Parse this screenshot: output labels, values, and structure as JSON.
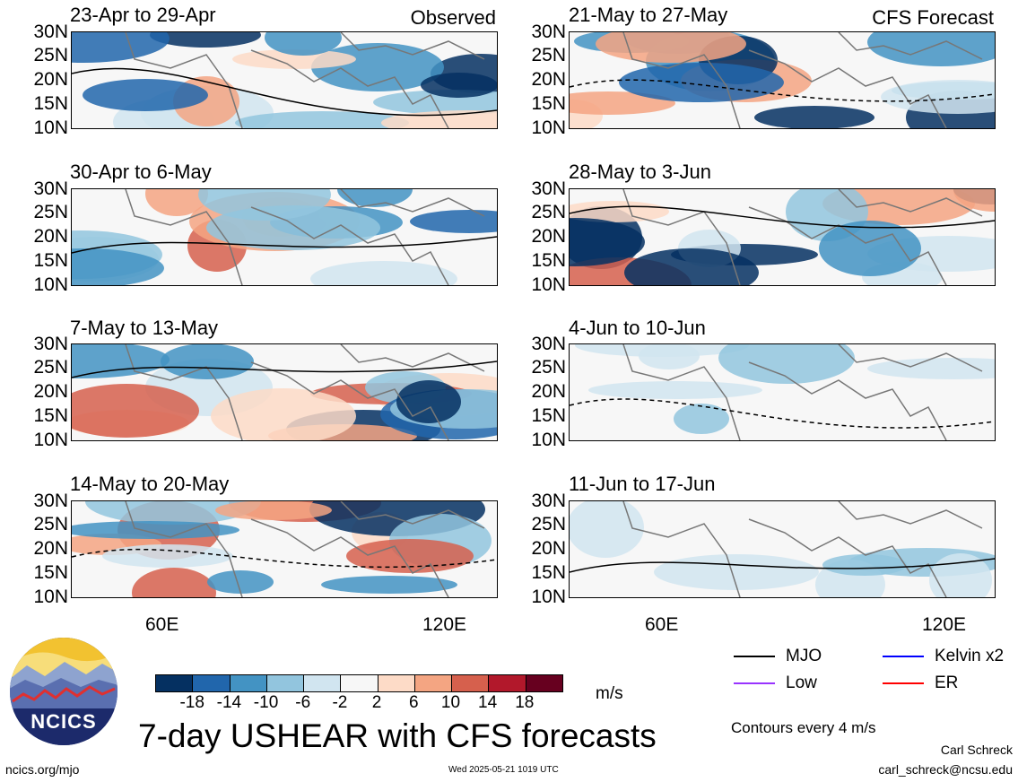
{
  "panels_left": [
    {
      "title": "23-Apr to 29-Apr",
      "tag": "Observed"
    },
    {
      "title": "30-Apr to 6-May",
      "tag": ""
    },
    {
      "title": "7-May to 13-May",
      "tag": ""
    },
    {
      "title": "14-May to 20-May",
      "tag": ""
    }
  ],
  "panels_right": [
    {
      "title": "21-May to 27-May",
      "tag": "CFS Forecast"
    },
    {
      "title": "28-May to 3-Jun",
      "tag": ""
    },
    {
      "title": "4-Jun to 10-Jun",
      "tag": ""
    },
    {
      "title": "11-Jun to 17-Jun",
      "tag": ""
    }
  ],
  "lat_labels": [
    "30N",
    "25N",
    "20N",
    "15N",
    "10N"
  ],
  "lon_labels": [
    "60E",
    "120E"
  ],
  "colorbar": {
    "labels": [
      "-18",
      "-14",
      "-10",
      "-6",
      "-2",
      "2",
      "6",
      "10",
      "14",
      "18"
    ],
    "colors": [
      "#053061",
      "#2166ac",
      "#4393c3",
      "#92c5de",
      "#d1e5f0",
      "#f7f7f7",
      "#fddbc7",
      "#f4a582",
      "#d6604d",
      "#b2182b",
      "#67001f"
    ],
    "units": "m/s"
  },
  "main_title": "7-day USHEAR with CFS forecasts",
  "legend": [
    {
      "label": "MJO",
      "color": "#000000"
    },
    {
      "label": "Kelvin x2",
      "color": "#0000ff"
    },
    {
      "label": "Low",
      "color": "#9933ff"
    },
    {
      "label": "ER",
      "color": "#ff0000"
    }
  ],
  "contour_note": "Contours every 4 m/s",
  "logo_text": "NCICS",
  "footer": {
    "left": "ncics.org/mjo",
    "center": "Wed 2025-05-21 1019 UTC",
    "author": "Carl Schreck",
    "email": "carl_schreck@ncsu.edu"
  }
}
